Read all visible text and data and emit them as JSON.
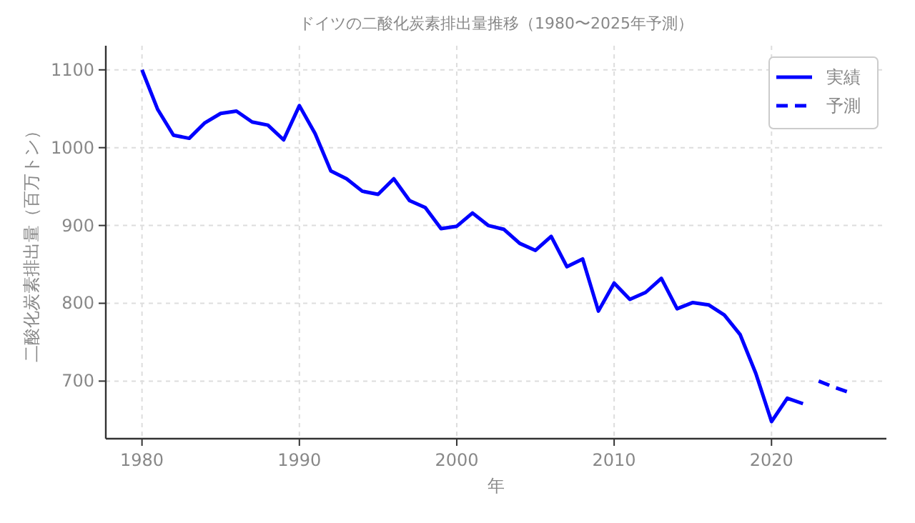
{
  "chart_data": {
    "type": "line",
    "title": "ドイツの二酸化炭素排出量推移（1980〜2025年予測）",
    "xlabel": "年",
    "ylabel": "二酸化炭素排出量（百万トン）",
    "xlim": [
      1977.7,
      2027.3
    ],
    "xticks": [
      1980,
      1990,
      2000,
      2010,
      2020
    ],
    "ylim": [
      626,
      1131
    ],
    "yticks": [
      700,
      800,
      900,
      1000,
      1100
    ],
    "grid": true,
    "legend": "top right",
    "series": [
      {
        "name": "実績",
        "color": "#0000ff",
        "line_style": "solid",
        "x": [
          1980,
          1981,
          1982,
          1983,
          1984,
          1985,
          1986,
          1987,
          1988,
          1989,
          1990,
          1991,
          1992,
          1993,
          1994,
          1995,
          1996,
          1997,
          1998,
          1999,
          2000,
          2001,
          2002,
          2003,
          2004,
          2005,
          2006,
          2007,
          2008,
          2009,
          2010,
          2011,
          2012,
          2013,
          2014,
          2015,
          2016,
          2017,
          2018,
          2019,
          2020,
          2021,
          2022
        ],
        "values": [
          1100,
          1049,
          1016,
          1012,
          1032,
          1044,
          1047,
          1033,
          1029,
          1010,
          1054,
          1018,
          970,
          960,
          944,
          940,
          960,
          932,
          923,
          896,
          899,
          916,
          900,
          895,
          877,
          868,
          886,
          847,
          857,
          790,
          826,
          805,
          814,
          832,
          793,
          801,
          798,
          785,
          760,
          710,
          648,
          678,
          671
        ]
      },
      {
        "name": "予測",
        "color": "#0000ff",
        "line_style": "dashed",
        "x": [
          2023,
          2024,
          2025
        ],
        "values": [
          700,
          692,
          685
        ]
      }
    ]
  }
}
